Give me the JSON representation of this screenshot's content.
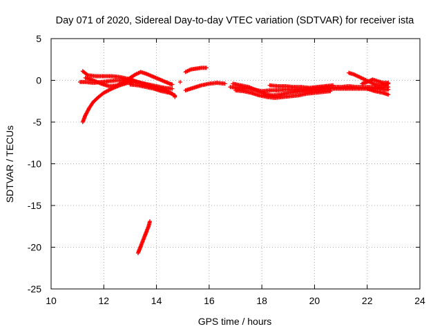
{
  "chart_data": {
    "type": "scatter",
    "title": "Day 071 of 2020, Sidereal Day-to-day VTEC variation (SDTVAR) for receiver ista",
    "xlabel": "GPS time / hours",
    "ylabel": "SDTVAR / TECUs",
    "xlim": [
      10,
      24
    ],
    "ylim": [
      -25,
      5
    ],
    "xticks": [
      "10",
      "12",
      "14",
      "16",
      "18",
      "20",
      "22",
      "24"
    ],
    "yticks": [
      "5",
      "0",
      "-5",
      "-10",
      "-15",
      "-20",
      "-25"
    ],
    "grid": true,
    "marker": "+",
    "series": [
      {
        "name": "SDTVAR",
        "color": "#ff0000",
        "segments": [
          {
            "points": [
              [
                11.2,
                -5.0
              ],
              [
                11.3,
                -4.2
              ],
              [
                11.45,
                -3.3
              ],
              [
                11.6,
                -2.6
              ],
              [
                11.8,
                -2.0
              ],
              [
                12.0,
                -1.5
              ],
              [
                12.3,
                -1.0
              ],
              [
                12.6,
                -0.6
              ],
              [
                12.9,
                -0.3
              ],
              [
                13.1,
                -0.2
              ]
            ]
          },
          {
            "points": [
              [
                11.1,
                -0.2
              ],
              [
                11.3,
                -0.2
              ],
              [
                11.6,
                -0.3
              ],
              [
                11.9,
                -0.2
              ],
              [
                12.2,
                -0.1
              ],
              [
                12.5,
                0.0
              ],
              [
                12.8,
                0.0
              ],
              [
                13.1,
                -0.1
              ],
              [
                13.4,
                -0.3
              ],
              [
                13.7,
                -0.5
              ],
              [
                14.0,
                -0.7
              ],
              [
                14.3,
                -0.9
              ],
              [
                14.6,
                -1.0
              ]
            ]
          },
          {
            "points": [
              [
                11.2,
                1.1
              ],
              [
                11.4,
                0.6
              ],
              [
                11.7,
                0.5
              ],
              [
                12.0,
                0.5
              ],
              [
                12.3,
                0.5
              ],
              [
                12.6,
                0.4
              ],
              [
                12.9,
                0.2
              ],
              [
                13.2,
                -0.1
              ],
              [
                13.5,
                -0.4
              ],
              [
                13.8,
                -0.7
              ],
              [
                14.1,
                -1.0
              ],
              [
                14.4,
                -1.3
              ],
              [
                14.6,
                -1.6
              ]
            ]
          },
          {
            "points": [
              [
                11.3,
                0.3
              ],
              [
                11.6,
                0.0
              ],
              [
                11.9,
                -0.4
              ],
              [
                12.2,
                -0.7
              ],
              [
                12.5,
                -0.6
              ],
              [
                12.8,
                -0.2
              ],
              [
                13.0,
                0.3
              ],
              [
                13.2,
                0.7
              ],
              [
                13.4,
                1.0
              ],
              [
                13.6,
                0.8
              ],
              [
                13.9,
                0.4
              ],
              [
                14.2,
                0.0
              ],
              [
                14.5,
                -0.4
              ],
              [
                14.6,
                -0.5
              ]
            ]
          },
          {
            "points": [
              [
                13.0,
                -0.5
              ],
              [
                13.3,
                -0.6
              ],
              [
                13.6,
                -0.8
              ],
              [
                13.9,
                -1.0
              ],
              [
                14.2,
                -1.3
              ],
              [
                14.5,
                -1.5
              ],
              [
                14.7,
                -1.8
              ],
              [
                14.7,
                -2.0
              ]
            ]
          },
          {
            "points": [
              [
                14.9,
                -0.2
              ]
            ]
          },
          {
            "points": [
              [
                15.1,
                1.0
              ],
              [
                15.3,
                1.3
              ],
              [
                15.5,
                1.4
              ],
              [
                15.7,
                1.5
              ],
              [
                15.9,
                1.5
              ]
            ]
          },
          {
            "points": [
              [
                15.1,
                -1.2
              ],
              [
                15.4,
                -0.9
              ],
              [
                15.7,
                -0.6
              ],
              [
                16.0,
                -0.4
              ],
              [
                16.3,
                -0.3
              ],
              [
                16.6,
                -0.4
              ]
            ]
          },
          {
            "points": [
              [
                16.8,
                -0.8
              ],
              [
                17.1,
                -0.9
              ],
              [
                17.4,
                -1.0
              ],
              [
                17.7,
                -1.1
              ],
              [
                18.0,
                -1.3
              ],
              [
                18.3,
                -1.2
              ],
              [
                18.6,
                -1.2
              ],
              [
                18.9,
                -1.1
              ],
              [
                19.2,
                -1.1
              ],
              [
                19.5,
                -1.0
              ],
              [
                19.8,
                -1.0
              ],
              [
                20.1,
                -0.9
              ],
              [
                20.4,
                -0.8
              ],
              [
                20.7,
                -0.8
              ],
              [
                21.0,
                -0.8
              ],
              [
                21.3,
                -0.7
              ],
              [
                21.6,
                -0.8
              ],
              [
                21.9,
                -0.8
              ],
              [
                22.2,
                -0.8
              ],
              [
                22.5,
                -0.8
              ],
              [
                22.8,
                -0.8
              ]
            ]
          },
          {
            "points": [
              [
                16.9,
                -0.4
              ],
              [
                17.2,
                -0.6
              ],
              [
                17.5,
                -0.8
              ],
              [
                17.8,
                -1.2
              ],
              [
                18.1,
                -1.6
              ],
              [
                18.4,
                -1.8
              ],
              [
                18.7,
                -1.7
              ],
              [
                19.0,
                -1.5
              ],
              [
                19.3,
                -1.4
              ],
              [
                19.6,
                -1.3
              ],
              [
                19.9,
                -1.2
              ],
              [
                20.2,
                -1.1
              ],
              [
                20.5,
                -1.0
              ],
              [
                20.8,
                -1.0
              ],
              [
                21.1,
                -1.0
              ],
              [
                21.4,
                -1.0
              ],
              [
                21.7,
                -1.0
              ],
              [
                22.0,
                -1.0
              ],
              [
                22.3,
                -1.0
              ],
              [
                22.6,
                -1.1
              ],
              [
                22.8,
                -1.1
              ]
            ]
          },
          {
            "points": [
              [
                17.0,
                -1.2
              ],
              [
                17.3,
                -1.3
              ],
              [
                17.6,
                -1.5
              ],
              [
                17.9,
                -1.8
              ],
              [
                18.2,
                -2.0
              ],
              [
                18.5,
                -2.1
              ],
              [
                18.8,
                -2.0
              ],
              [
                19.1,
                -1.9
              ],
              [
                19.4,
                -1.8
              ],
              [
                19.7,
                -1.6
              ],
              [
                20.0,
                -1.5
              ],
              [
                20.3,
                -1.4
              ],
              [
                20.6,
                -1.3
              ]
            ]
          },
          {
            "points": [
              [
                18.3,
                -0.6
              ],
              [
                18.6,
                -0.7
              ],
              [
                18.9,
                -0.7
              ],
              [
                19.2,
                -0.8
              ],
              [
                19.5,
                -0.8
              ],
              [
                19.8,
                -0.9
              ],
              [
                20.1,
                -0.8
              ],
              [
                20.4,
                -0.7
              ],
              [
                20.7,
                -0.6
              ]
            ]
          },
          {
            "points": [
              [
                21.3,
                0.9
              ],
              [
                21.5,
                0.7
              ],
              [
                21.7,
                0.4
              ],
              [
                21.9,
                0.1
              ],
              [
                22.1,
                -0.2
              ],
              [
                22.3,
                -0.5
              ],
              [
                22.5,
                -0.6
              ],
              [
                22.7,
                -0.5
              ],
              [
                22.8,
                -0.4
              ]
            ]
          },
          {
            "points": [
              [
                21.8,
                -0.4
              ],
              [
                22.0,
                -0.2
              ],
              [
                22.2,
                0.1
              ],
              [
                22.4,
                -0.1
              ],
              [
                22.6,
                -0.3
              ],
              [
                22.8,
                -0.3
              ]
            ]
          },
          {
            "points": [
              [
                22.0,
                -1.0
              ],
              [
                22.3,
                -1.3
              ],
              [
                22.6,
                -1.5
              ],
              [
                22.8,
                -1.7
              ]
            ]
          },
          {
            "points": [
              [
                13.3,
                -20.7
              ],
              [
                13.4,
                -19.9
              ],
              [
                13.5,
                -19.1
              ],
              [
                13.6,
                -18.3
              ],
              [
                13.7,
                -17.5
              ],
              [
                13.75,
                -16.9
              ]
            ]
          }
        ]
      }
    ]
  }
}
